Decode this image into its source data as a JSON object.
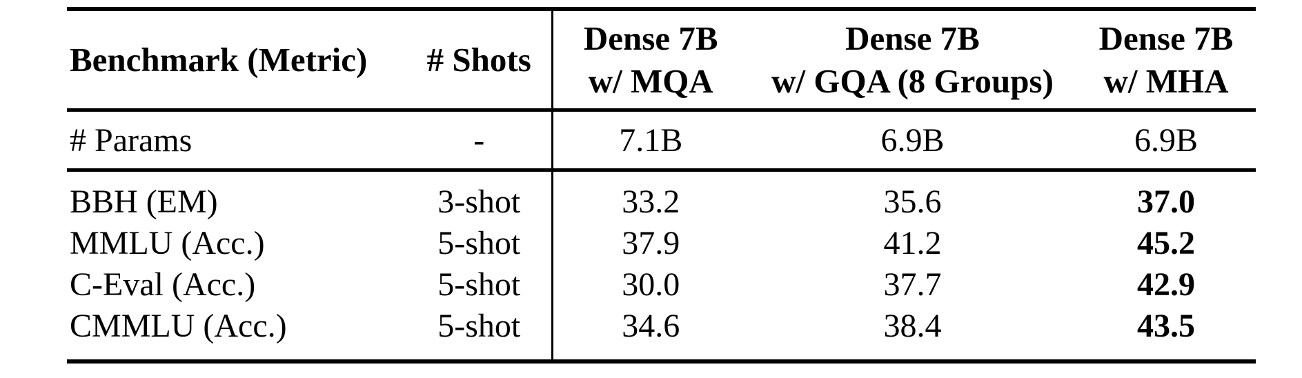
{
  "table": {
    "header": {
      "benchmark": "Benchmark (Metric)",
      "shots": "# Shots",
      "col_mqa": {
        "line1": "Dense 7B",
        "line2": "w/ MQA"
      },
      "col_gqa": {
        "line1": "Dense 7B",
        "line2": "w/ GQA (8 Groups)"
      },
      "col_mha": {
        "line1": "Dense 7B",
        "line2": "w/ MHA"
      }
    },
    "params": {
      "label": "# Params",
      "shots": "-",
      "mqa": "7.1B",
      "gqa": "6.9B",
      "mha": "6.9B"
    },
    "rows": [
      {
        "benchmark": "BBH (EM)",
        "shots": "3-shot",
        "mqa": "33.2",
        "gqa": "35.6",
        "mha": "37.0"
      },
      {
        "benchmark": "MMLU (Acc.)",
        "shots": "5-shot",
        "mqa": "37.9",
        "gqa": "41.2",
        "mha": "45.2"
      },
      {
        "benchmark": "C-Eval (Acc.)",
        "shots": "5-shot",
        "mqa": "30.0",
        "gqa": "37.7",
        "mha": "42.9"
      },
      {
        "benchmark": "CMMLU (Acc.)",
        "shots": "5-shot",
        "mqa": "34.6",
        "gqa": "38.4",
        "mha": "43.5"
      }
    ],
    "colors": {
      "text": "#000000",
      "background": "#ffffff",
      "rule": "#000000"
    }
  }
}
